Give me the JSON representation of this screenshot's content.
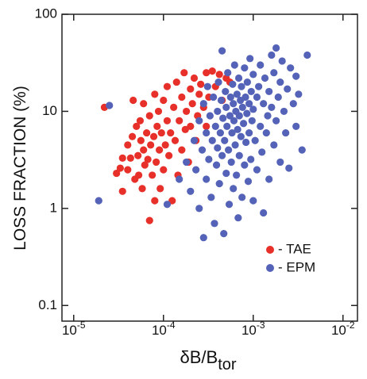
{
  "chart_data": {
    "type": "scatter",
    "xlabel": "δB/B",
    "xlabel_subscript": "tor",
    "ylabel": "LOSS FRACTION (%)",
    "xscale": "log",
    "yscale": "log",
    "xlim": [
      7.4e-06,
      0.0145
    ],
    "ylim": [
      0.069,
      100
    ],
    "xticks": [
      {
        "value": 1e-05,
        "label": "10-5"
      },
      {
        "value": 0.0001,
        "label": "10-4"
      },
      {
        "value": 0.001,
        "label": "10-3"
      },
      {
        "value": 0.01,
        "label": "10-2"
      }
    ],
    "yticks": [
      0.1,
      1,
      10,
      100
    ],
    "legend": "lower-right",
    "series": [
      {
        "name": "- TAE",
        "color": "#e8302a",
        "x": [
          2.2e-05,
          3e-05,
          3.3e-05,
          3.5e-05,
          3.5e-05,
          4e-05,
          4e-05,
          4.3e-05,
          4.5e-05,
          4.6e-05,
          4.8e-05,
          5e-05,
          5.2e-05,
          5.3e-05,
          5.5e-05,
          5.6e-05,
          5.8e-05,
          6e-05,
          6e-05,
          6.2e-05,
          6.5e-05,
          6.7e-05,
          7e-05,
          7e-05,
          7.2e-05,
          7.5e-05,
          7.8e-05,
          8e-05,
          8e-05,
          8.3e-05,
          8.5e-05,
          8.8e-05,
          9e-05,
          9.2e-05,
          9.5e-05,
          0.0001,
          0.0001,
          0.000105,
          0.00011,
          0.00011,
          0.000115,
          0.00012,
          0.000125,
          0.00013,
          0.000135,
          0.00014,
          0.000145,
          0.00015,
          0.00016,
          0.00016,
          0.00017,
          0.000175,
          0.00018,
          0.00019,
          0.0002,
          0.0002,
          0.00021,
          0.00022,
          0.00023,
          0.00024,
          0.00025,
          0.00026,
          0.00028,
          0.0003,
          0.00032,
          0.00035,
          0.00038,
          0.00042,
          0.0005,
          0.00055,
          0.00045,
          0.0003
        ],
        "values": [
          11,
          2.3,
          2.6,
          3.3,
          1.5,
          4.5,
          2.5,
          3.3,
          5.5,
          13,
          2,
          7,
          3.5,
          2.2,
          8,
          5,
          1.6,
          4,
          12,
          2.8,
          6,
          3.2,
          9,
          0.75,
          4.5,
          2.2,
          5.5,
          1.2,
          15,
          3,
          7,
          10,
          4,
          1.6,
          6,
          13,
          2.5,
          4.5,
          8,
          18,
          3.5,
          6,
          1.2,
          11,
          5,
          20,
          2.2,
          8,
          14,
          4,
          25,
          6.5,
          10,
          3,
          17,
          7,
          12,
          22,
          5,
          9,
          15,
          19,
          11,
          25,
          14,
          26,
          18,
          24,
          22,
          20,
          13,
          7
        ]
      },
      {
        "name": "- EPM",
        "color": "#5463b8",
        "x": [
          1.9e-05,
          2.5e-05,
          0.00011,
          0.00015,
          0.00018,
          0.0002,
          0.00022,
          0.00023,
          0.00025,
          0.00025,
          0.00027,
          0.00028,
          0.00028,
          0.0003,
          0.0003,
          0.00031,
          0.00032,
          0.00033,
          0.00034,
          0.00035,
          0.00036,
          0.00037,
          0.00038,
          0.00039,
          0.0004,
          0.0004,
          0.00041,
          0.00042,
          0.00043,
          0.00044,
          0.00045,
          0.00045,
          0.00046,
          0.00047,
          0.00048,
          0.00049,
          0.0005,
          0.0005,
          0.00051,
          0.00052,
          0.00053,
          0.00054,
          0.00055,
          0.00056,
          0.00057,
          0.00058,
          0.00059,
          0.0006,
          0.0006,
          0.00061,
          0.00062,
          0.00063,
          0.00064,
          0.00065,
          0.00066,
          0.00067,
          0.00068,
          0.00069,
          0.0007,
          0.0007,
          0.00072,
          0.00073,
          0.00074,
          0.00075,
          0.00076,
          0.00078,
          0.0008,
          0.0008,
          0.00082,
          0.00083,
          0.00085,
          0.00086,
          0.00088,
          0.0009,
          0.0009,
          0.00092,
          0.00094,
          0.00095,
          0.00097,
          0.001,
          0.001,
          0.001,
          0.00105,
          0.0011,
          0.0011,
          0.00115,
          0.0012,
          0.0012,
          0.00125,
          0.0013,
          0.0013,
          0.00135,
          0.0014,
          0.00145,
          0.0015,
          0.0015,
          0.0016,
          0.0016,
          0.0017,
          0.0017,
          0.0018,
          0.0018,
          0.0019,
          0.002,
          0.002,
          0.0021,
          0.0022,
          0.0023,
          0.0024,
          0.0025,
          0.0026,
          0.0028,
          0.003,
          0.003,
          0.0032,
          0.004,
          0.0035
        ],
        "values": [
          1.2,
          11.5,
          1.1,
          2,
          3,
          1.5,
          5,
          2.5,
          8,
          1,
          4,
          12,
          0.5,
          6,
          2,
          18,
          3.2,
          9,
          1.3,
          5,
          14,
          0.7,
          7,
          2.8,
          10,
          4.2,
          20,
          1.8,
          6,
          13,
          3.5,
          42,
          8.5,
          0.55,
          5,
          16,
          2.3,
          11,
          7,
          25,
          4,
          1.1,
          9,
          14,
          3,
          6,
          19,
          1.6,
          12,
          8,
          30,
          4.5,
          10,
          2.2,
          15,
          6.5,
          0.8,
          22,
          9,
          3.5,
          13,
          5.5,
          18,
          1.3,
          11,
          7.5,
          28,
          2.8,
          14,
          4.8,
          9.5,
          20,
          1.9,
          12,
          6,
          35,
          3.2,
          16,
          8,
          24,
          1.2,
          10.5,
          5,
          14,
          2.5,
          18,
          7,
          30,
          3.8,
          12,
          0.9,
          22,
          6,
          9,
          16,
          2,
          38,
          11,
          4.5,
          25,
          45,
          8,
          14,
          3,
          20,
          33,
          10,
          6,
          17,
          2.6,
          28,
          12,
          23,
          7,
          15,
          38,
          4
        ]
      }
    ]
  }
}
